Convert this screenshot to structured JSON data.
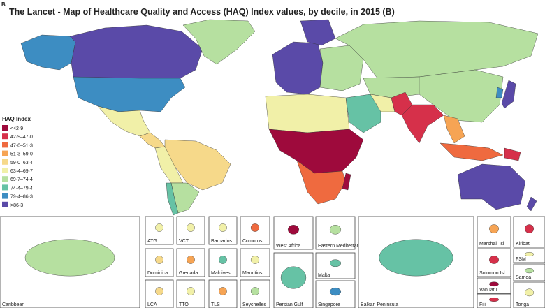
{
  "panel_label": "B",
  "title": "The Lancet - Map of Healthcare Quality and Access (HAQ) Index values, by decile, in 2015 (B)",
  "legend": {
    "title": "HAQ Index",
    "items": [
      {
        "label": "<42·9",
        "color": "#9e0a3c"
      },
      {
        "label": "42·9–47·0",
        "color": "#d6304a"
      },
      {
        "label": "47·0–51·3",
        "color": "#ef6a3f"
      },
      {
        "label": "51·3–59·0",
        "color": "#f6a454"
      },
      {
        "label": "59·0–63·4",
        "color": "#f6d98a"
      },
      {
        "label": "63·4–69·7",
        "color": "#f1f0a8"
      },
      {
        "label": "69·7–74·4",
        "color": "#b6e0a0"
      },
      {
        "label": "74·4–79·4",
        "color": "#66c2a5"
      },
      {
        "label": "79·4–86·3",
        "color": "#3d8dc2"
      },
      {
        "label": ">86·3",
        "color": "#5a4aa8"
      }
    ]
  },
  "insets": [
    {
      "label": "Caribbean"
    },
    {
      "label": "ATG"
    },
    {
      "label": "VCT"
    },
    {
      "label": "Barbados"
    },
    {
      "label": "Comoros"
    },
    {
      "label": "Dominica"
    },
    {
      "label": "Grenada"
    },
    {
      "label": "Maldives"
    },
    {
      "label": "Mauritius"
    },
    {
      "label": "LCA"
    },
    {
      "label": "TTO"
    },
    {
      "label": "TLS"
    },
    {
      "label": "Seychelles"
    },
    {
      "label": "West Africa"
    },
    {
      "label": "Eastern Mediterranean"
    },
    {
      "label": "Persian Gulf"
    },
    {
      "label": "Malta"
    },
    {
      "label": "Singapore"
    },
    {
      "label": "Balkan Peninsula"
    },
    {
      "label": "Marshall Isl"
    },
    {
      "label": "Kiribati"
    },
    {
      "label": "Solomon Isl"
    },
    {
      "label": "FSM"
    },
    {
      "label": "Vanuatu"
    },
    {
      "label": "Samoa"
    },
    {
      "label": "Fiji"
    },
    {
      "label": "Tonga"
    }
  ]
}
